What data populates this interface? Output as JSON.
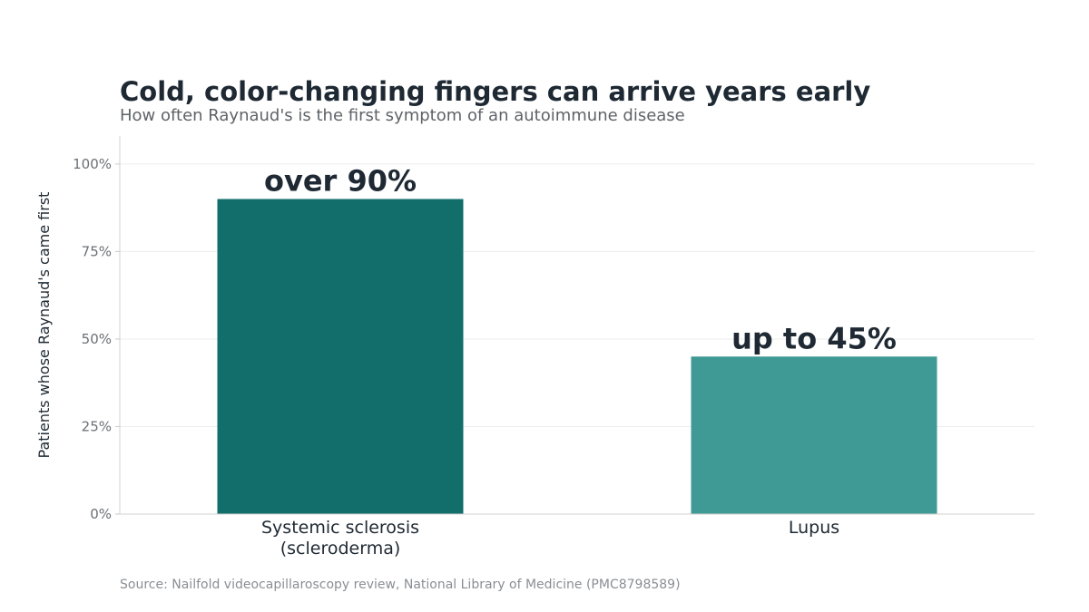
{
  "chart_data": {
    "type": "bar",
    "title": "Cold, color-changing fingers can arrive years early",
    "subtitle": "How often Raynaud's is the first symptom of an autoimmune disease",
    "ylabel": "Patients whose Raynaud's came first",
    "xlabel": "",
    "categories": [
      [
        "Systemic sclerosis",
        "(scleroderma)"
      ],
      [
        "Lupus"
      ]
    ],
    "values": [
      90,
      45
    ],
    "data_labels": [
      "over 90%",
      "up to 45%"
    ],
    "bar_colors": [
      "#116e6b",
      "#3f9995"
    ],
    "ylim": [
      0,
      108
    ],
    "yticks": [
      0,
      25,
      50,
      75,
      100
    ],
    "ytick_labels": [
      "0%",
      "25%",
      "50%",
      "75%",
      "100%"
    ],
    "grid": true,
    "legend": "none"
  },
  "source": "Source: Nailfold videocapillaroscopy review, National Library of Medicine (PMC8798589)"
}
